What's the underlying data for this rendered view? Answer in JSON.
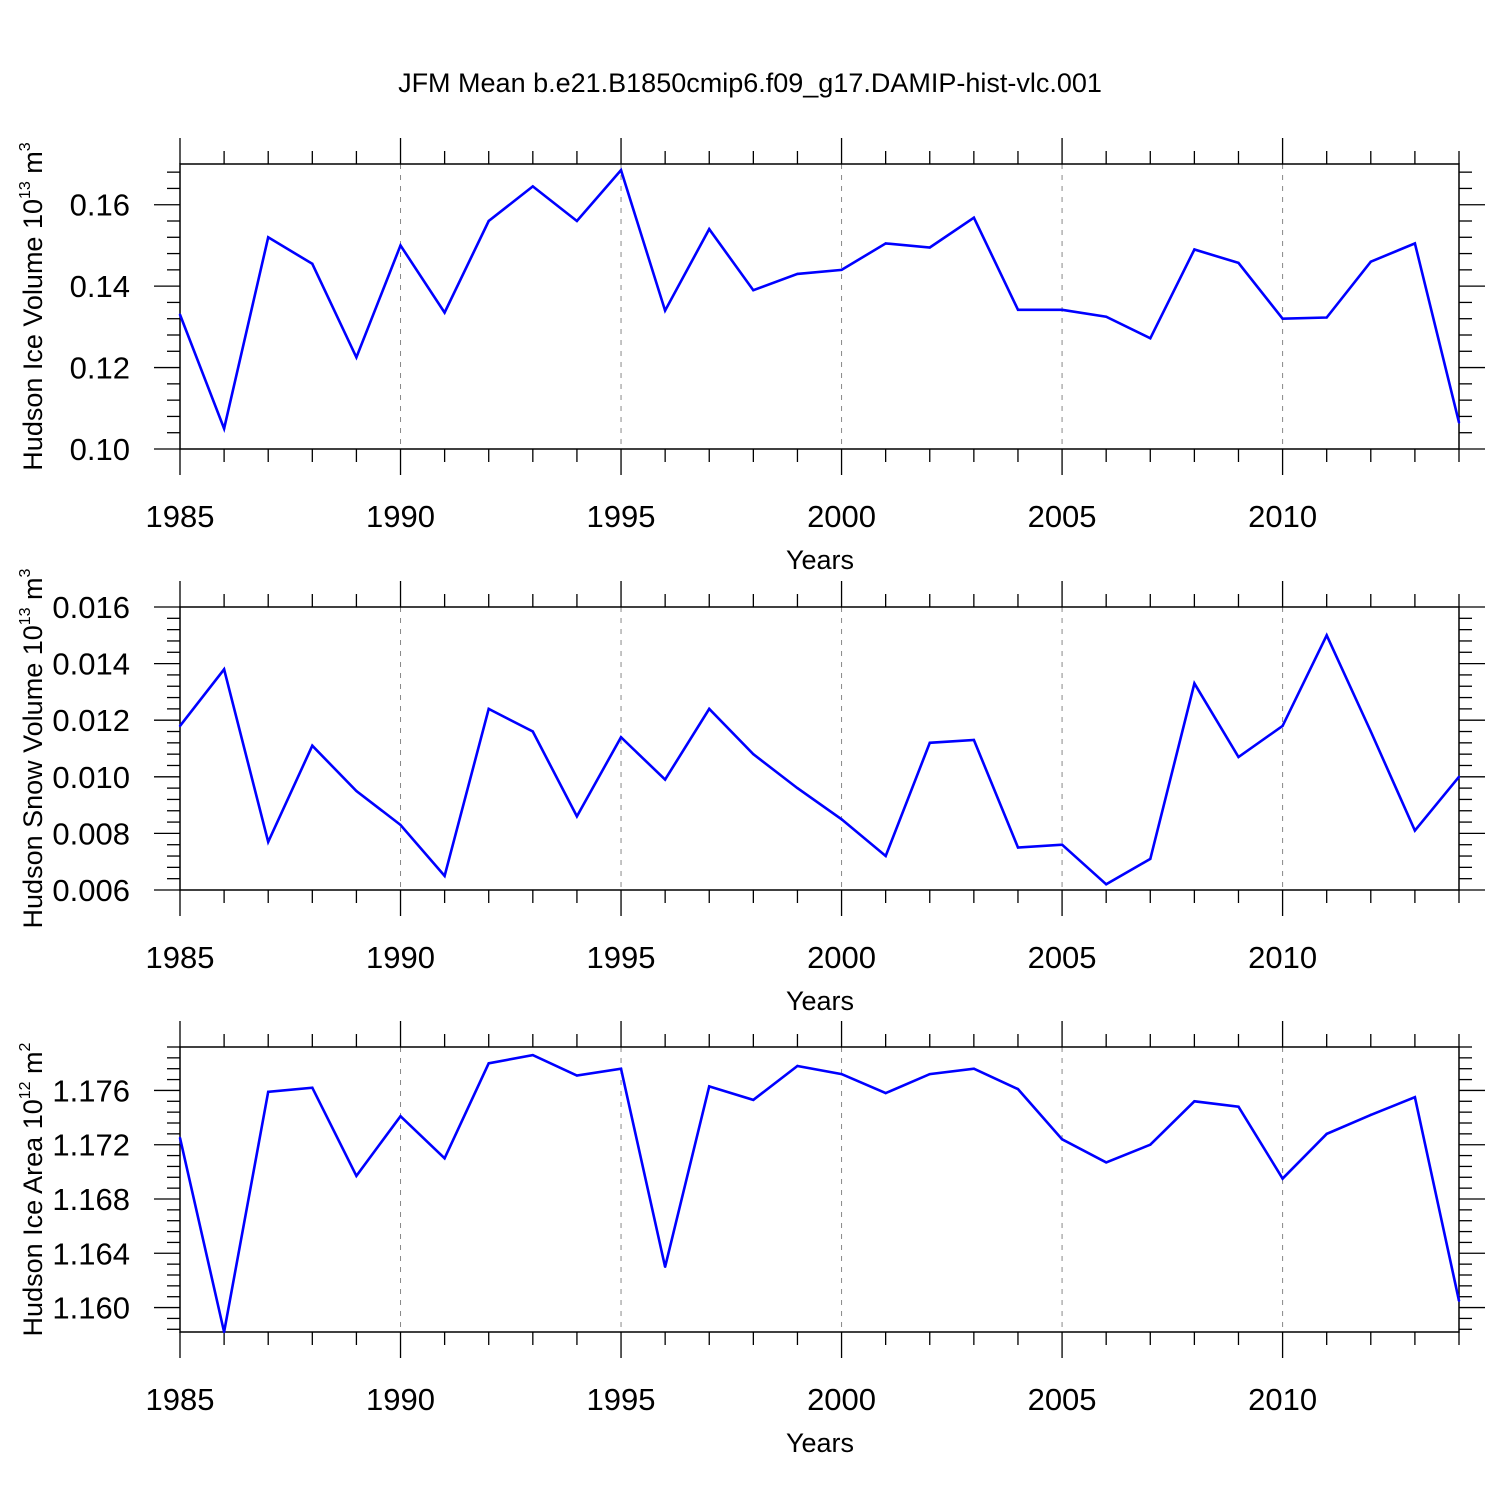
{
  "title": "JFM Mean b.e21.B1850cmip6.f09_g17.DAMIP-hist-vlc.001",
  "colors": {
    "series": "#0000ff",
    "axis": "#000000",
    "grid": "#888888"
  },
  "chart_data": [
    {
      "type": "line",
      "name": "ice-volume",
      "ylabel": "Hudson Ice Volume 10",
      "ylabel_exp": "13",
      "ylabel_unit": " m",
      "ylabel_unit_exp": "3",
      "xlabel": "Years",
      "xlim": [
        1985,
        2014
      ],
      "ylim": [
        0.1,
        0.17
      ],
      "xticks": [
        1985,
        1990,
        1995,
        2000,
        2005,
        2010
      ],
      "yticks": [
        0.1,
        0.12,
        0.14,
        0.16
      ],
      "ytick_labels": [
        "0.10",
        "0.12",
        "0.14",
        "0.16"
      ],
      "grid": "vertical dashed at major x ticks",
      "x": [
        1985,
        1986,
        1987,
        1988,
        1989,
        1990,
        1991,
        1992,
        1993,
        1994,
        1995,
        1996,
        1997,
        1998,
        1999,
        2000,
        2001,
        2002,
        2003,
        2004,
        2005,
        2006,
        2007,
        2008,
        2009,
        2010,
        2011,
        2012,
        2013,
        2014
      ],
      "values": [
        0.133,
        0.105,
        0.152,
        0.1455,
        0.1225,
        0.15,
        0.1335,
        0.156,
        0.1645,
        0.156,
        0.1685,
        0.134,
        0.154,
        0.139,
        0.143,
        0.144,
        0.1505,
        0.1495,
        0.1568,
        0.1342,
        0.1342,
        0.1325,
        0.1272,
        0.149,
        0.1457,
        0.132,
        0.1323,
        0.146,
        0.1505,
        0.1065
      ]
    },
    {
      "type": "line",
      "name": "snow-volume",
      "ylabel": "Hudson Snow Volume 10",
      "ylabel_exp": "13",
      "ylabel_unit": " m",
      "ylabel_unit_exp": "3",
      "xlabel": "Years",
      "xlim": [
        1985,
        2014
      ],
      "ylim": [
        0.006,
        0.016
      ],
      "xticks": [
        1985,
        1990,
        1995,
        2000,
        2005,
        2010
      ],
      "yticks": [
        0.006,
        0.008,
        0.01,
        0.012,
        0.014,
        0.016
      ],
      "ytick_labels": [
        "0.006",
        "0.008",
        "0.010",
        "0.012",
        "0.014",
        "0.016"
      ],
      "grid": "vertical dashed at major x ticks",
      "x": [
        1985,
        1986,
        1987,
        1988,
        1989,
        1990,
        1991,
        1992,
        1993,
        1994,
        1995,
        1996,
        1997,
        1998,
        1999,
        2000,
        2001,
        2002,
        2003,
        2004,
        2005,
        2006,
        2007,
        2008,
        2009,
        2010,
        2011,
        2012,
        2013,
        2014
      ],
      "values": [
        0.0118,
        0.0138,
        0.0077,
        0.0111,
        0.0095,
        0.0083,
        0.0065,
        0.0124,
        0.0116,
        0.0086,
        0.0114,
        0.0099,
        0.0124,
        0.0108,
        0.0096,
        0.0085,
        0.0072,
        0.0112,
        0.0113,
        0.0075,
        0.0076,
        0.0062,
        0.0071,
        0.0133,
        0.0107,
        0.0118,
        0.015,
        0.0116,
        0.0081,
        0.01
      ]
    },
    {
      "type": "line",
      "name": "ice-area",
      "ylabel": "Hudson Ice Area 10",
      "ylabel_exp": "12",
      "ylabel_unit": " m",
      "ylabel_unit_exp": "2",
      "xlabel": "Years",
      "xlim": [
        1985,
        2014
      ],
      "ylim": [
        1.1582,
        1.1792
      ],
      "xticks": [
        1985,
        1990,
        1995,
        2000,
        2005,
        2010
      ],
      "yticks": [
        1.16,
        1.164,
        1.168,
        1.172,
        1.176
      ],
      "ytick_labels": [
        "1.160",
        "1.164",
        "1.168",
        "1.172",
        "1.176"
      ],
      "grid": "vertical dashed at major x ticks",
      "x": [
        1985,
        1986,
        1987,
        1988,
        1989,
        1990,
        1991,
        1992,
        1993,
        1994,
        1995,
        1996,
        1997,
        1998,
        1999,
        2000,
        2001,
        2002,
        2003,
        2004,
        2005,
        2006,
        2007,
        2008,
        2009,
        2010,
        2011,
        2012,
        2013,
        2014
      ],
      "values": [
        1.1725,
        1.1582,
        1.1759,
        1.1762,
        1.1697,
        1.1741,
        1.171,
        1.178,
        1.1786,
        1.1771,
        1.1776,
        1.163,
        1.1763,
        1.1753,
        1.1778,
        1.1772,
        1.1758,
        1.1772,
        1.1776,
        1.1761,
        1.1724,
        1.1707,
        1.172,
        1.1752,
        1.1748,
        1.1695,
        1.1728,
        1.1742,
        1.1755,
        1.1605
      ]
    }
  ]
}
